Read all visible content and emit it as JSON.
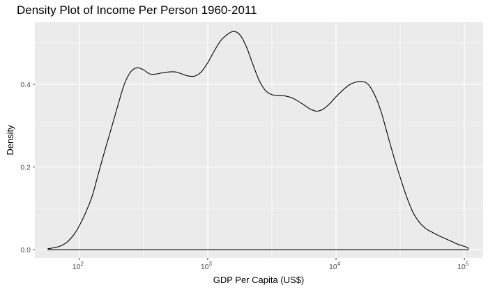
{
  "chart_data": {
    "type": "area",
    "title": "Density Plot of Income Per Person 1960-2011",
    "xlabel": "GDP Per Capita (US$)",
    "ylabel": "Density",
    "x_scale": "log10",
    "xlim": [
      45,
      140000
    ],
    "ylim": [
      -0.02,
      0.55
    ],
    "x_ticks": [
      {
        "value": 100,
        "label": "10",
        "exp": "2"
      },
      {
        "value": 1000,
        "label": "10",
        "exp": "3"
      },
      {
        "value": 10000,
        "label": "10",
        "exp": "4"
      },
      {
        "value": 100000,
        "label": "10",
        "exp": "5"
      }
    ],
    "y_ticks": [
      {
        "value": 0.0,
        "label": "0.0"
      },
      {
        "value": 0.2,
        "label": "0.2"
      },
      {
        "value": 0.4,
        "label": "0.4"
      }
    ],
    "grid": true,
    "series": [
      {
        "x": [
          57,
          70,
          80,
          90,
          100,
          112,
          126,
          141,
          158,
          178,
          200,
          224,
          251,
          282,
          316,
          355,
          398,
          447,
          501,
          562,
          631,
          708,
          794,
          891,
          1000,
          1122,
          1259,
          1413,
          1585,
          1778,
          1995,
          2239,
          2512,
          2818,
          3162,
          3548,
          3981,
          4467,
          5012,
          5623,
          6310,
          7079,
          7943,
          8913,
          10000,
          11220,
          12589,
          14125,
          15849,
          17783,
          19953,
          22387,
          25119,
          28184,
          31623,
          35481,
          39811,
          44668,
          50119,
          56234,
          63096,
          70795,
          79433,
          89125,
          100000,
          107000
        ],
        "y": [
          0.002,
          0.008,
          0.018,
          0.035,
          0.058,
          0.09,
          0.13,
          0.185,
          0.24,
          0.295,
          0.35,
          0.4,
          0.43,
          0.44,
          0.435,
          0.425,
          0.425,
          0.428,
          0.43,
          0.43,
          0.425,
          0.42,
          0.42,
          0.43,
          0.452,
          0.48,
          0.505,
          0.52,
          0.528,
          0.52,
          0.492,
          0.45,
          0.41,
          0.385,
          0.375,
          0.373,
          0.372,
          0.368,
          0.36,
          0.35,
          0.34,
          0.335,
          0.34,
          0.353,
          0.37,
          0.385,
          0.398,
          0.405,
          0.407,
          0.4,
          0.375,
          0.335,
          0.28,
          0.225,
          0.175,
          0.128,
          0.09,
          0.066,
          0.051,
          0.042,
          0.034,
          0.027,
          0.02,
          0.013,
          0.008,
          0.004
        ]
      }
    ]
  }
}
